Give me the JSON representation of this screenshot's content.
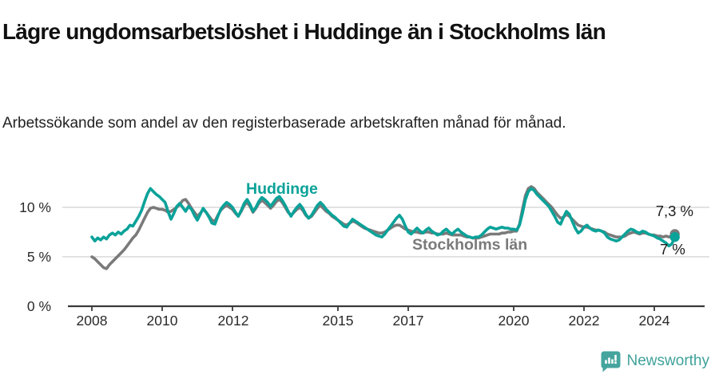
{
  "header": {
    "title": "Lägre ungdomsarbetslöshet i Huddinge än i Stockholms län",
    "subtitle": "Arbetssökande som andel av den registerbaserade arbetskraften månad för månad."
  },
  "footer": {
    "brand": "Newsworthy"
  },
  "colors": {
    "huddinge": "#0aa299",
    "stockholm": "#7a7a7a",
    "grid": "#d8d8d8",
    "axis": "#3a3a3a",
    "text": "#1c1c1c",
    "brand": "#3fa29a"
  },
  "chart_data": {
    "type": "line",
    "title": "Lägre ungdomsarbetslöshet i Huddinge än i Stockholms län",
    "subtitle": "Arbetssökande som andel av den registerbaserade arbetskraften månad för månad.",
    "x_monthly_from": "2008-01",
    "x_monthly_to": "2024-08",
    "ylim": [
      0,
      13
    ],
    "grid": "horizontal only",
    "y_gridlines_pct": [
      5,
      10
    ],
    "y_tick_labels": [
      "10 %",
      "5 %",
      "0 %"
    ],
    "x_ticks": [
      2008,
      2010,
      2012,
      2015,
      2017,
      2020,
      2022,
      2024
    ],
    "x_tick_labels": [
      "2008",
      "2010",
      "2012",
      "2015",
      "2017",
      "2020",
      "2022",
      "2024"
    ],
    "legend_position": "labels on lines",
    "series": [
      {
        "name": "Huddinge",
        "color": "#0aa299",
        "end_label": "7 %",
        "end_value": 7.0,
        "values": [
          7.0,
          6.6,
          6.9,
          6.7,
          7.0,
          6.8,
          7.2,
          7.4,
          7.2,
          7.5,
          7.3,
          7.6,
          7.8,
          8.2,
          8.1,
          8.6,
          9.1,
          9.7,
          10.6,
          11.4,
          11.9,
          11.6,
          11.3,
          11.1,
          10.8,
          10.5,
          9.6,
          8.8,
          9.4,
          10.1,
          10.4,
          10.0,
          9.6,
          10.1,
          9.8,
          9.2,
          8.7,
          9.3,
          9.9,
          9.5,
          9.0,
          8.4,
          8.3,
          9.1,
          9.8,
          10.2,
          10.5,
          10.3,
          10.0,
          9.5,
          9.1,
          9.7,
          10.4,
          10.8,
          10.3,
          9.6,
          10.0,
          10.6,
          11.0,
          10.8,
          10.5,
          10.1,
          10.5,
          10.9,
          11.1,
          10.7,
          10.2,
          9.6,
          9.1,
          9.6,
          10.0,
          10.3,
          9.9,
          9.3,
          8.9,
          9.2,
          9.7,
          10.2,
          10.5,
          10.2,
          9.8,
          9.5,
          9.2,
          9.0,
          8.7,
          8.4,
          8.1,
          8.0,
          8.4,
          8.8,
          8.6,
          8.4,
          8.2,
          8.0,
          7.8,
          7.6,
          7.4,
          7.2,
          7.1,
          7.0,
          7.3,
          7.7,
          8.1,
          8.5,
          8.9,
          9.2,
          8.8,
          8.1,
          7.5,
          7.3,
          7.6,
          7.9,
          7.6,
          7.4,
          7.7,
          7.9,
          7.6,
          7.4,
          7.2,
          7.3,
          7.6,
          7.8,
          7.5,
          7.3,
          7.6,
          7.8,
          7.5,
          7.3,
          7.1,
          7.0,
          6.9,
          7.0,
          7.0,
          7.2,
          7.5,
          7.8,
          8.0,
          7.9,
          7.8,
          7.9,
          8.0,
          7.9,
          7.9,
          7.8,
          7.8,
          7.7,
          8.2,
          9.4,
          10.8,
          11.6,
          11.9,
          11.7,
          11.3,
          11.0,
          10.7,
          10.4,
          10.1,
          9.6,
          9.1,
          8.5,
          8.3,
          9.0,
          9.6,
          9.3,
          8.6,
          7.9,
          7.4,
          7.6,
          8.0,
          8.2,
          7.9,
          7.7,
          7.6,
          7.7,
          7.6,
          7.4,
          7.0,
          6.8,
          6.7,
          6.6,
          6.7,
          7.0,
          7.3,
          7.6,
          7.8,
          7.7,
          7.5,
          7.4,
          7.6,
          7.5,
          7.3,
          7.2,
          7.1,
          6.9,
          6.8,
          6.6,
          6.4,
          6.1,
          6.3,
          7.0
        ]
      },
      {
        "name": "Stockholms län",
        "color": "#7a7a7a",
        "end_label": "7,3 %",
        "end_value": 7.3,
        "values": [
          5.0,
          4.8,
          4.5,
          4.2,
          3.9,
          3.8,
          4.2,
          4.5,
          4.8,
          5.1,
          5.4,
          5.7,
          6.1,
          6.5,
          6.9,
          7.2,
          7.7,
          8.3,
          8.9,
          9.5,
          9.9,
          10.0,
          9.9,
          9.8,
          9.8,
          9.7,
          9.5,
          9.6,
          9.8,
          10.0,
          10.3,
          10.7,
          10.8,
          10.4,
          9.9,
          9.5,
          9.1,
          9.4,
          9.8,
          9.5,
          9.1,
          8.7,
          8.6,
          9.2,
          9.7,
          10.0,
          10.2,
          10.0,
          9.8,
          9.4,
          9.1,
          9.6,
          10.2,
          10.5,
          10.1,
          9.5,
          9.9,
          10.4,
          10.7,
          10.5,
          10.2,
          9.9,
          10.2,
          10.6,
          10.8,
          10.5,
          10.0,
          9.5,
          9.2,
          9.5,
          9.8,
          10.0,
          9.7,
          9.2,
          8.9,
          9.1,
          9.5,
          9.9,
          10.2,
          9.9,
          9.6,
          9.4,
          9.1,
          8.9,
          8.7,
          8.5,
          8.3,
          8.2,
          8.4,
          8.6,
          8.5,
          8.3,
          8.1,
          7.9,
          7.8,
          7.7,
          7.6,
          7.5,
          7.4,
          7.4,
          7.5,
          7.7,
          7.9,
          8.1,
          8.2,
          8.2,
          8.0,
          7.8,
          7.7,
          7.6,
          7.5,
          7.5,
          7.4,
          7.4,
          7.5,
          7.5,
          7.4,
          7.4,
          7.3,
          7.3,
          7.3,
          7.4,
          7.3,
          7.2,
          7.2,
          7.2,
          7.2,
          7.1,
          7.0,
          7.0,
          6.9,
          6.9,
          6.9,
          7.0,
          7.1,
          7.2,
          7.3,
          7.3,
          7.3,
          7.3,
          7.4,
          7.4,
          7.5,
          7.5,
          7.6,
          7.6,
          8.3,
          9.8,
          11.2,
          11.9,
          12.1,
          11.9,
          11.5,
          11.2,
          10.9,
          10.6,
          10.3,
          10.0,
          9.6,
          9.2,
          8.9,
          9.0,
          9.3,
          9.1,
          8.8,
          8.5,
          8.2,
          8.1,
          8.0,
          8.0,
          7.9,
          7.8,
          7.7,
          7.7,
          7.6,
          7.5,
          7.3,
          7.2,
          7.1,
          7.0,
          7.0,
          7.0,
          7.1,
          7.3,
          7.4,
          7.5,
          7.4,
          7.3,
          7.4,
          7.4,
          7.3,
          7.2,
          7.2,
          7.1,
          7.1,
          7.0,
          7.1,
          7.0,
          7.1,
          7.3
        ]
      }
    ]
  }
}
